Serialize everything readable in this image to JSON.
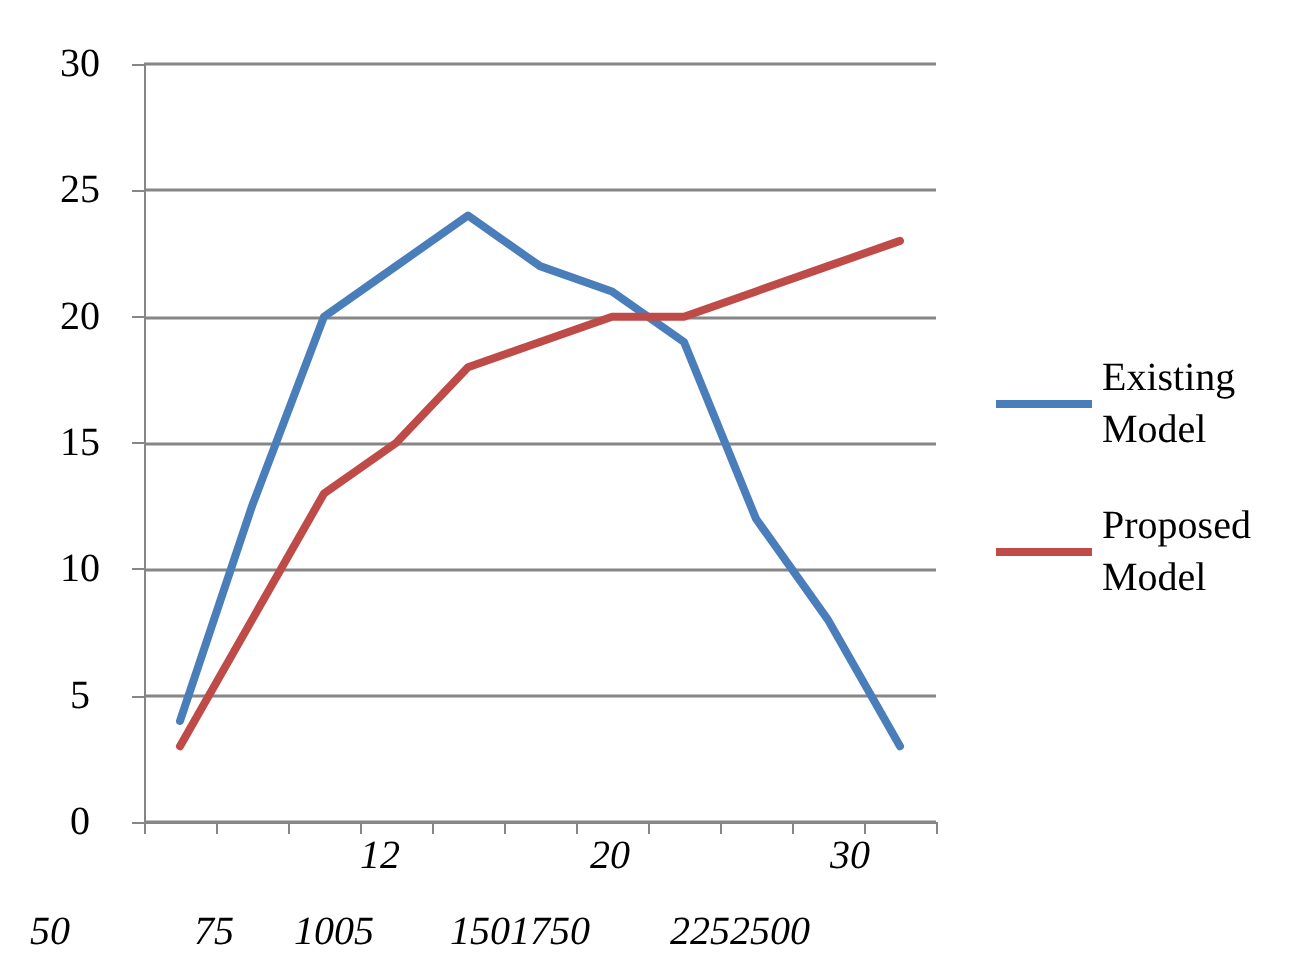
{
  "chart_data": {
    "type": "line",
    "categories": [
      null,
      null,
      null,
      null,
      null,
      null,
      null,
      null,
      null,
      null,
      null
    ],
    "series": [
      {
        "name": "Existing Model",
        "color": "#4a7ebb",
        "values": [
          4,
          12.5,
          20,
          22,
          24,
          22,
          21,
          19,
          12,
          8,
          3
        ]
      },
      {
        "name": "Proposed Model",
        "color": "#be4b48",
        "values": [
          3,
          8,
          13,
          15,
          18,
          19,
          20,
          20,
          21,
          22,
          23
        ]
      }
    ],
    "ylim": [
      0,
      30
    ],
    "yticks": [
      0,
      5,
      10,
      15,
      20,
      25,
      30
    ],
    "grid": "y",
    "legend": "right",
    "marker": "none",
    "line_style": "solid",
    "annotations": [
      "12",
      "20",
      "30",
      "50",
      "75",
      "1005",
      "1501750",
      "2252500"
    ]
  }
}
